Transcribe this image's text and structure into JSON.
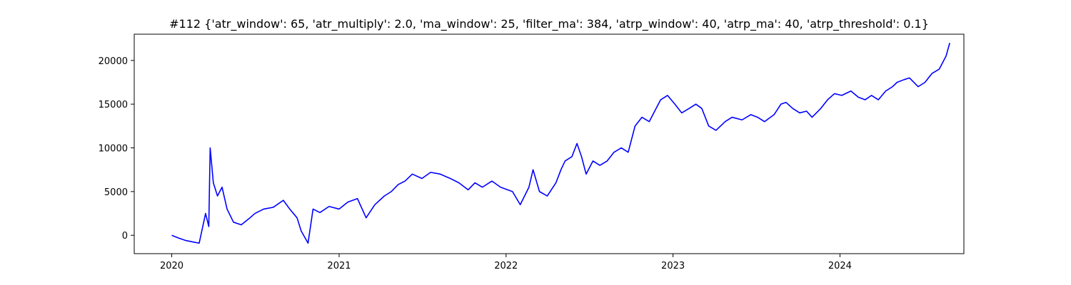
{
  "chart_data": {
    "type": "line",
    "title": "#112 {'atr_window': 65, 'atr_multiply': 2.0, 'ma_window': 25, 'filter_ma': 384, 'atrp_window': 40, 'atrp_ma': 40, 'atrp_threshold': 0.1}",
    "xlabel": "",
    "ylabel": "",
    "xlim": [
      "2019-10-11",
      "2024-09-28"
    ],
    "ylim": [
      -2100,
      23000
    ],
    "x_ticks": [
      {
        "date": "2020-01-01",
        "label": "2020"
      },
      {
        "date": "2021-01-01",
        "label": "2021"
      },
      {
        "date": "2022-01-01",
        "label": "2022"
      },
      {
        "date": "2023-01-01",
        "label": "2023"
      },
      {
        "date": "2024-01-01",
        "label": "2024"
      }
    ],
    "y_ticks": [
      {
        "value": 0,
        "label": "0"
      },
      {
        "value": 5000,
        "label": "5000"
      },
      {
        "value": 10000,
        "label": "10000"
      },
      {
        "value": 15000,
        "label": "15000"
      },
      {
        "value": 20000,
        "label": "20000"
      }
    ],
    "grid": false,
    "legend": "none",
    "series": [
      {
        "color": "#0000ff",
        "x": [
          "2020-01-01",
          "2020-01-15",
          "2020-02-01",
          "2020-02-20",
          "2020-03-01",
          "2020-03-15",
          "2020-03-22",
          "2020-03-25",
          "2020-04-01",
          "2020-04-10",
          "2020-04-20",
          "2020-05-01",
          "2020-05-15",
          "2020-06-01",
          "2020-06-20",
          "2020-07-01",
          "2020-07-20",
          "2020-08-10",
          "2020-09-01",
          "2020-09-15",
          "2020-10-01",
          "2020-10-10",
          "2020-10-25",
          "2020-11-05",
          "2020-11-20",
          "2020-12-10",
          "2021-01-01",
          "2021-01-20",
          "2021-02-10",
          "2021-03-01",
          "2021-03-20",
          "2021-04-10",
          "2021-04-25",
          "2021-05-10",
          "2021-05-25",
          "2021-06-10",
          "2021-07-01",
          "2021-07-20",
          "2021-08-10",
          "2021-09-01",
          "2021-09-20",
          "2021-10-10",
          "2021-10-25",
          "2021-11-10",
          "2021-12-01",
          "2021-12-20",
          "2022-01-15",
          "2022-02-01",
          "2022-02-20",
          "2022-03-01",
          "2022-03-15",
          "2022-04-01",
          "2022-04-20",
          "2022-05-01",
          "2022-05-10",
          "2022-05-25",
          "2022-06-05",
          "2022-06-15",
          "2022-06-25",
          "2022-07-10",
          "2022-07-25",
          "2022-08-10",
          "2022-08-25",
          "2022-09-10",
          "2022-09-25",
          "2022-10-10",
          "2022-10-25",
          "2022-11-10",
          "2022-11-25",
          "2022-12-05",
          "2022-12-20",
          "2023-01-05",
          "2023-01-20",
          "2023-02-05",
          "2023-02-20",
          "2023-03-05",
          "2023-03-20",
          "2023-04-05",
          "2023-04-25",
          "2023-05-10",
          "2023-06-01",
          "2023-06-20",
          "2023-07-05",
          "2023-07-20",
          "2023-08-10",
          "2023-08-25",
          "2023-09-05",
          "2023-09-20",
          "2023-10-05",
          "2023-10-20",
          "2023-11-01",
          "2023-11-20",
          "2023-12-05",
          "2023-12-20",
          "2024-01-05",
          "2024-01-25",
          "2024-02-10",
          "2024-02-25",
          "2024-03-10",
          "2024-03-25",
          "2024-04-10",
          "2024-04-25",
          "2024-05-05",
          "2024-05-20",
          "2024-06-01",
          "2024-06-20",
          "2024-07-05",
          "2024-07-20",
          "2024-08-05",
          "2024-08-20",
          "2024-08-28"
        ],
        "y": [
          0,
          -300,
          -600,
          -800,
          -900,
          2500,
          1000,
          10000,
          6000,
          4500,
          5500,
          3000,
          1500,
          1200,
          2000,
          2500,
          3000,
          3200,
          4000,
          3000,
          2000,
          500,
          -900,
          3000,
          2600,
          3300,
          3000,
          3800,
          4200,
          2000,
          3500,
          4500,
          5000,
          5800,
          6200,
          7000,
          6500,
          7200,
          7000,
          6500,
          6000,
          5200,
          6000,
          5500,
          6200,
          5500,
          5000,
          3500,
          5500,
          7500,
          5000,
          4500,
          6000,
          7500,
          8500,
          9000,
          10500,
          9000,
          7000,
          8500,
          8000,
          8500,
          9500,
          10000,
          9500,
          12500,
          13500,
          13000,
          14500,
          15500,
          16000,
          15000,
          14000,
          14500,
          15000,
          14500,
          12500,
          12000,
          13000,
          13500,
          13200,
          13800,
          13500,
          13000,
          13800,
          15000,
          15200,
          14500,
          14000,
          14200,
          13500,
          14500,
          15500,
          16200,
          16000,
          16500,
          15800,
          15500,
          16000,
          15500,
          16500,
          17000,
          17500,
          17800,
          18000,
          17000,
          17500,
          18500,
          19000,
          20500,
          22000
        ]
      }
    ]
  }
}
